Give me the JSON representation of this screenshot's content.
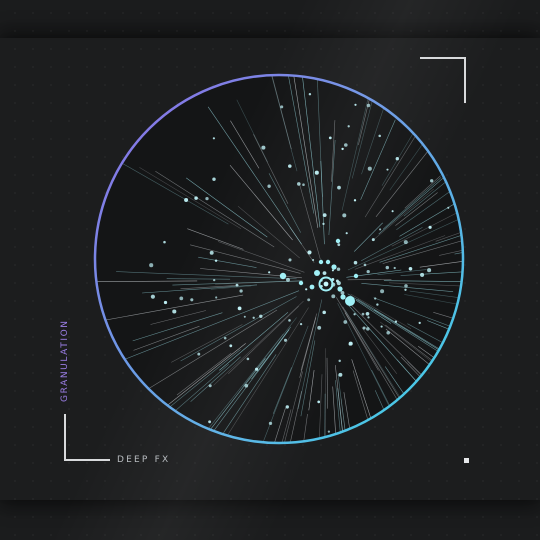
{
  "cover": {
    "side_label": "GRANULATION",
    "bottom_label": "DEEP FX"
  },
  "colors": {
    "background": "#1b1c1d",
    "ring_start": "#8f6be6",
    "ring_end": "#3fd6e6",
    "particle": "#bff1f6",
    "frame": "#d8dadc"
  },
  "art": {
    "motif": "particle-burst",
    "ray_count": 150,
    "particle_count": 140,
    "seed": 7
  }
}
